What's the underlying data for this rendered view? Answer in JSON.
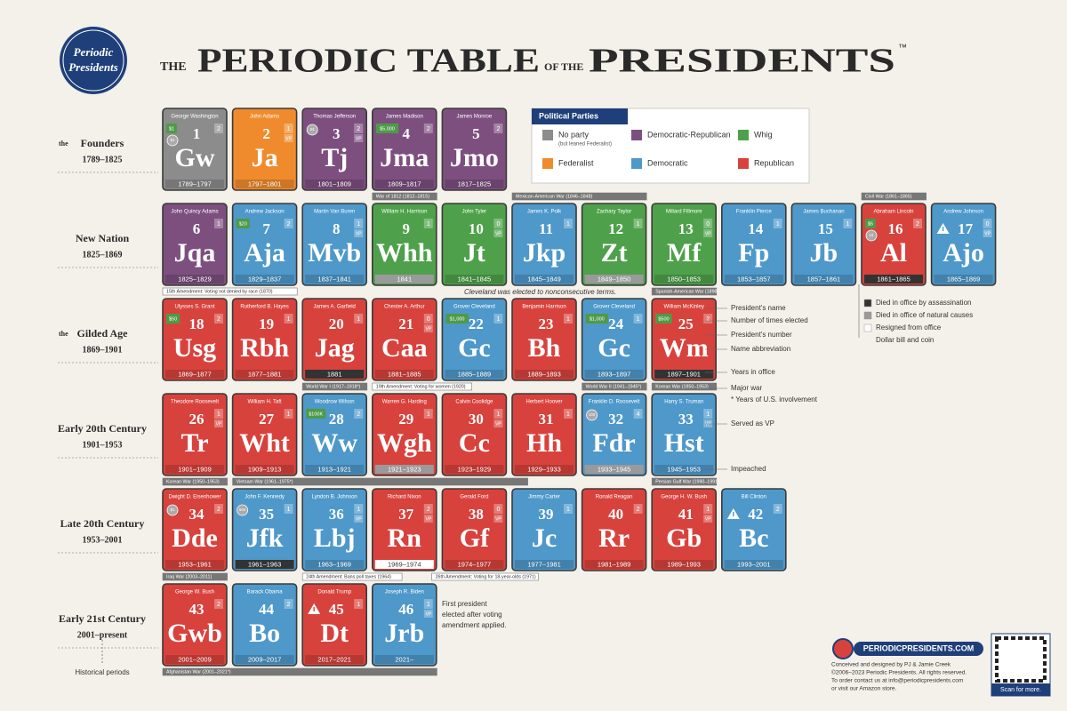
{
  "logo": [
    "Periodic",
    "Presidents"
  ],
  "title": {
    "pre": "THE",
    "main": "PERIODIC TABLE",
    "mid": "OF THE",
    "end": "PRESIDENTS",
    "tm": "™"
  },
  "legend": {
    "title": "Political Parties",
    "parties": [
      {
        "name": "No party",
        "note": "(but leaned Federalist)",
        "color": "#8c8c8c"
      },
      {
        "name": "Democratic-Republican",
        "color": "#7d4f7f"
      },
      {
        "name": "Whig",
        "color": "#4ea14a"
      },
      {
        "name": "Federalist",
        "color": "#f08b2d"
      },
      {
        "name": "Democratic",
        "color": "#4e98ca"
      },
      {
        "name": "Republican",
        "color": "#d8423d"
      }
    ]
  },
  "periods": [
    {
      "prefix": "the",
      "name": "Founders",
      "years": "1789–1825",
      "presidents": [
        {
          "name": "George Washington",
          "number": 1,
          "abbr": "Gw",
          "years": "1789–1797",
          "party": "No party",
          "elected": 2,
          "money": "$1",
          "coin": "$1"
        },
        {
          "name": "John Adams",
          "number": 2,
          "abbr": "Ja",
          "years": "1797–1801",
          "party": "Federalist",
          "elected": 1,
          "vp": "VP"
        },
        {
          "name": "Thomas Jefferson",
          "number": 3,
          "abbr": "Tj",
          "years": "1801–1809",
          "party": "Democratic-Republican",
          "elected": 2,
          "vp": "VP",
          "coin": "5¢"
        },
        {
          "name": "James Madison",
          "number": 4,
          "abbr": "Jma",
          "years": "1809–1817",
          "party": "Democratic-Republican",
          "elected": 2,
          "money": "$5,000"
        },
        {
          "name": "James Monroe",
          "number": 5,
          "abbr": "Jmo",
          "years": "1817–1825",
          "party": "Democratic-Republican",
          "elected": 2
        }
      ]
    },
    {
      "name": "New Nation",
      "years": "1825–1869",
      "presidents": [
        {
          "name": "John Quincy Adams",
          "number": 6,
          "abbr": "Jqa",
          "years": "1825–1829",
          "party": "Democratic-Republican",
          "elected": 1
        },
        {
          "name": "Andrew Jackson",
          "number": 7,
          "abbr": "Aja",
          "years": "1829–1837",
          "party": "Democratic",
          "elected": 2,
          "money": "$20"
        },
        {
          "name": "Martin Van Buren",
          "number": 8,
          "abbr": "Mvb",
          "years": "1837–1841",
          "party": "Democratic",
          "elected": 1,
          "vp": "VP"
        },
        {
          "name": "William H. Harrison",
          "number": 9,
          "abbr": "Whh",
          "years": "1841",
          "party": "Whig",
          "elected": 1,
          "status": "natural"
        },
        {
          "name": "John Tyler",
          "number": 10,
          "abbr": "Jt",
          "years": "1841–1845",
          "party": "Whig",
          "elected": 0,
          "vp": "VP"
        },
        {
          "name": "James K. Polk",
          "number": 11,
          "abbr": "Jkp",
          "years": "1845–1849",
          "party": "Democratic",
          "elected": 1
        },
        {
          "name": "Zachary Taylor",
          "number": 12,
          "abbr": "Zt",
          "years": "1849–1850",
          "party": "Whig",
          "elected": 1,
          "status": "natural"
        },
        {
          "name": "Millard Fillmore",
          "number": 13,
          "abbr": "Mf",
          "years": "1850–1853",
          "party": "Whig",
          "elected": 0,
          "vp": "VP"
        },
        {
          "name": "Franklin Pierce",
          "number": 14,
          "abbr": "Fp",
          "years": "1853–1857",
          "party": "Democratic",
          "elected": 1
        },
        {
          "name": "James Buchanan",
          "number": 15,
          "abbr": "Jb",
          "years": "1857–1861",
          "party": "Democratic",
          "elected": 1
        },
        {
          "name": "Abraham Lincoln",
          "number": 16,
          "abbr": "Al",
          "years": "1861–1865",
          "party": "Republican",
          "elected": 2,
          "money": "$5",
          "coin": "1¢",
          "status": "assassinated"
        },
        {
          "name": "Andrew Johnson",
          "number": 17,
          "abbr": "Ajo",
          "years": "1865–1869",
          "party": "Democratic",
          "elected": 0,
          "vp": "VP",
          "impeached": true
        }
      ]
    },
    {
      "prefix": "the",
      "name": "Gilded Age",
      "years": "1869–1901",
      "presidents": [
        {
          "name": "Ulysses S. Grant",
          "number": 18,
          "abbr": "Usg",
          "years": "1869–1877",
          "party": "Republican",
          "elected": 2,
          "money": "$50"
        },
        {
          "name": "Rutherford B. Hayes",
          "number": 19,
          "abbr": "Rbh",
          "years": "1877–1881",
          "party": "Republican",
          "elected": 1
        },
        {
          "name": "James A. Garfield",
          "number": 20,
          "abbr": "Jag",
          "years": "1881",
          "party": "Republican",
          "elected": 1,
          "status": "assassinated"
        },
        {
          "name": "Chester A. Arthur",
          "number": 21,
          "abbr": "Caa",
          "years": "1881–1885",
          "party": "Republican",
          "elected": 0,
          "vp": "VP"
        },
        {
          "name": "Grover Cleveland",
          "number": 22,
          "abbr": "Gc",
          "years": "1885–1889",
          "party": "Democratic",
          "elected": 1,
          "money": "$1,000"
        },
        {
          "name": "Benjamin Harrison",
          "number": 23,
          "abbr": "Bh",
          "years": "1889–1893",
          "party": "Republican",
          "elected": 1
        },
        {
          "name": "Grover Cleveland",
          "number": 24,
          "abbr": "Gc",
          "years": "1893–1897",
          "party": "Democratic",
          "elected": 1,
          "money": "$1,000"
        },
        {
          "name": "William McKinley",
          "number": 25,
          "abbr": "Wm",
          "years": "1897–1901",
          "party": "Republican",
          "elected": 2,
          "money": "$500",
          "status": "assassinated"
        }
      ]
    },
    {
      "name": "Early 20th Century",
      "years": "1901–1953",
      "presidents": [
        {
          "name": "Theodore Roosevelt",
          "number": 26,
          "abbr": "Tr",
          "years": "1901–1909",
          "party": "Republican",
          "elected": 1,
          "vp": "VP"
        },
        {
          "name": "William H. Taft",
          "number": 27,
          "abbr": "Wht",
          "years": "1909–1913",
          "party": "Republican",
          "elected": 1
        },
        {
          "name": "Woodrow Wilson",
          "number": 28,
          "abbr": "Ww",
          "years": "1913–1921",
          "party": "Democratic",
          "elected": 2,
          "money": "$100K"
        },
        {
          "name": "Warren G. Harding",
          "number": 29,
          "abbr": "Wgh",
          "years": "1921–1923",
          "party": "Republican",
          "elected": 1,
          "status": "natural"
        },
        {
          "name": "Calvin Coolidge",
          "number": 30,
          "abbr": "Cc",
          "years": "1923–1929",
          "party": "Republican",
          "elected": 1,
          "vp": "VP"
        },
        {
          "name": "Herbert Hoover",
          "number": 31,
          "abbr": "Hh",
          "years": "1929–1933",
          "party": "Republican",
          "elected": 1
        },
        {
          "name": "Franklin D. Roosevelt",
          "number": 32,
          "abbr": "Fdr",
          "years": "1933–1945",
          "party": "Democratic",
          "elected": 4,
          "coin": "10¢",
          "status": "natural"
        },
        {
          "name": "Harry S. Truman",
          "number": 33,
          "abbr": "Hst",
          "years": "1945–1953",
          "party": "Democratic",
          "elected": 1,
          "vp": "VP"
        }
      ]
    },
    {
      "name": "Late 20th Century",
      "years": "1953–2001",
      "presidents": [
        {
          "name": "Dwight D. Eisenhower",
          "number": 34,
          "abbr": "Dde",
          "years": "1953–1961",
          "party": "Republican",
          "elected": 2,
          "coin": "$1"
        },
        {
          "name": "John F. Kennedy",
          "number": 35,
          "abbr": "Jfk",
          "years": "1961–1963",
          "party": "Democratic",
          "elected": 1,
          "coin": "50¢",
          "status": "assassinated"
        },
        {
          "name": "Lyndon B. Johnson",
          "number": 36,
          "abbr": "Lbj",
          "years": "1963–1969",
          "party": "Democratic",
          "elected": 1,
          "vp": "VP"
        },
        {
          "name": "Richard Nixon",
          "number": 37,
          "abbr": "Rn",
          "years": "1969–1974",
          "party": "Republican",
          "elected": 2,
          "vp": "VP",
          "status": "resigned"
        },
        {
          "name": "Gerald Ford",
          "number": 38,
          "abbr": "Gf",
          "years": "1974–1977",
          "party": "Republican",
          "elected": 0,
          "vp": "VP"
        },
        {
          "name": "Jimmy Carter",
          "number": 39,
          "abbr": "Jc",
          "years": "1977–1981",
          "party": "Democratic",
          "elected": 1
        },
        {
          "name": "Ronald Reagan",
          "number": 40,
          "abbr": "Rr",
          "years": "1981–1989",
          "party": "Republican",
          "elected": 2
        },
        {
          "name": "George H. W. Bush",
          "number": 41,
          "abbr": "Gb",
          "years": "1989–1993",
          "party": "Republican",
          "elected": 1,
          "vp": "VP"
        },
        {
          "name": "Bill Clinton",
          "number": 42,
          "abbr": "Bc",
          "years": "1993–2001",
          "party": "Democratic",
          "elected": 2,
          "impeached": true
        }
      ]
    },
    {
      "name": "Early 21st Century",
      "years": "2001–present",
      "presidents": [
        {
          "name": "George W. Bush",
          "number": 43,
          "abbr": "Gwb",
          "years": "2001–2009",
          "party": "Republican",
          "elected": 2
        },
        {
          "name": "Barack Obama",
          "number": 44,
          "abbr": "Bo",
          "years": "2009–2017",
          "party": "Democratic",
          "elected": 2
        },
        {
          "name": "Donald Trump",
          "number": 45,
          "abbr": "Dt",
          "years": "2017–2021",
          "party": "Republican",
          "elected": 1,
          "impeached": true
        },
        {
          "name": "Joseph R. Biden",
          "number": 46,
          "abbr": "Jrb",
          "years": "2021–",
          "party": "Democratic",
          "elected": 1,
          "vp": "VP"
        }
      ]
    }
  ],
  "events": [
    "War of 1812 (1812–1815)",
    "Mexican-American War (1846–1848)",
    "Civil War (1861–1865)",
    "15th Amendment: Voting not denied by race (1870)",
    "Spanish-American War (1898)",
    "World War I (1917–1918*)",
    "19th Amendment: Voting for women (1920)",
    "World War II (1941–1945*)",
    "Korean War (1950–1953)",
    "Korean War (1950–1953)",
    "Vietnam War (1961–1975*)",
    "Persian Gulf War (1990–1991)",
    "Iraq War (2003–2011)",
    "24th Amendment: Bans poll taxes (1964)",
    "26th Amendment: Voting for 18-year-olds (1971)",
    "Afghanistan War (2001–2021*)"
  ],
  "cleveland_note": "Cleveland was elected to nonconsecutive terms.",
  "key": [
    "President's name",
    "Number of times elected",
    "President's number",
    "Name abbreviation",
    "Years in office",
    "Major war",
    "* Years of U.S. involvement",
    "Served as VP",
    "Impeached"
  ],
  "status_key": [
    "Died in office by assassination",
    "Died in office of natural causes",
    "Resigned from office",
    "Dollar bill and coin"
  ],
  "amendment_note": [
    "First president",
    "elected after voting",
    "amendment applied."
  ],
  "periods_note": "Historical periods",
  "footer": {
    "site": "PERIODICPRESIDENTS.COM",
    "lines": [
      "Conceived and designed by PJ & Jamie Creek",
      "©2006–2023 Periodic Presidents. All rights reserved.",
      "To order contact us at info@periodicpresidents.com",
      "or visit our Amazon store."
    ],
    "scan": "Scan for more."
  }
}
